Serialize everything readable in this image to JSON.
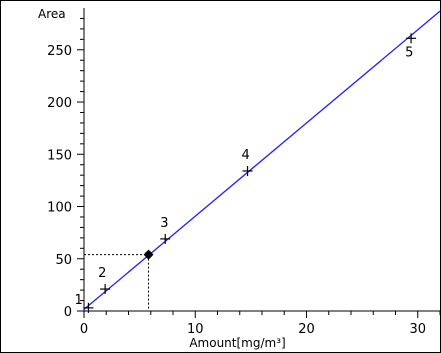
{
  "chart_data": {
    "type": "scatter",
    "xlabel": "Amount[mg/m³]",
    "ylabel": "Area",
    "xlim": [
      0,
      32
    ],
    "ylim": [
      0,
      290
    ],
    "x_ticks": [
      "0",
      "10",
      "20",
      "30"
    ],
    "y_ticks": [
      "0",
      "50",
      "100",
      "150",
      "200",
      "250"
    ],
    "points": [
      {
        "label": "1",
        "x": 0.4,
        "y": 3
      },
      {
        "label": "2",
        "x": 1.9,
        "y": 21
      },
      {
        "label": "3",
        "x": 7.3,
        "y": 69
      },
      {
        "label": "4",
        "x": 14.7,
        "y": 134
      },
      {
        "label": "5",
        "x": 29.4,
        "y": 261
      }
    ],
    "fit_line": {
      "x": [
        0,
        32
      ],
      "y": [
        1.5,
        287
      ]
    },
    "marker": {
      "x": 5.8,
      "y": 54
    },
    "colors": {
      "fit_line": "#1f1fff",
      "points": "#000000",
      "marker": "#000000"
    }
  }
}
